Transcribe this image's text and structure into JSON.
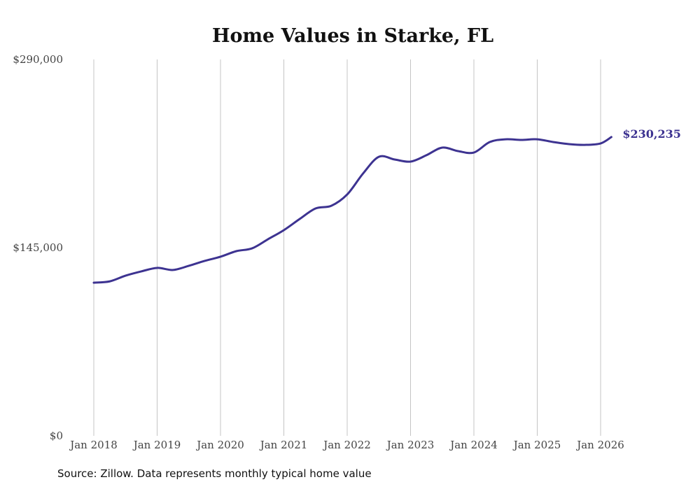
{
  "chart_data": {
    "type": "line",
    "title": "Home Values in Starke, FL",
    "xlabel": "",
    "ylabel": "",
    "ylim": [
      0,
      290000
    ],
    "y_ticks": [
      0,
      145000,
      290000
    ],
    "y_tick_labels": [
      "$0",
      "$145,000",
      "$290,000"
    ],
    "x_range": [
      2018.0,
      2026.0
    ],
    "x_tick_labels": [
      "Jan 2018",
      "Jan 2019",
      "Jan 2020",
      "Jan 2021",
      "Jan 2022",
      "Jan 2023",
      "Jan 2024",
      "Jan 2025",
      "Jan 2026"
    ],
    "grid": "vertical",
    "series": [
      {
        "name": "Typical home value",
        "color": "#3d3391",
        "x": [
          2018.0,
          2018.25,
          2018.5,
          2018.75,
          2019.0,
          2019.25,
          2019.5,
          2019.75,
          2020.0,
          2020.25,
          2020.5,
          2020.75,
          2021.0,
          2021.25,
          2021.5,
          2021.75,
          2022.0,
          2022.25,
          2022.5,
          2022.75,
          2023.0,
          2023.25,
          2023.5,
          2023.75,
          2024.0,
          2024.25,
          2024.5,
          2024.75,
          2025.0,
          2025.25,
          2025.5,
          2025.75,
          2026.0,
          2026.17
        ],
        "values": [
          118000,
          119000,
          123400,
          126700,
          129400,
          127800,
          131000,
          134800,
          138000,
          142300,
          144500,
          151500,
          158500,
          167100,
          175200,
          177300,
          186000,
          202100,
          215000,
          212900,
          211300,
          216200,
          222100,
          219400,
          218300,
          226400,
          228500,
          228000,
          228500,
          226400,
          224800,
          224200,
          225300,
          230235
        ]
      }
    ],
    "end_label": "$230,235"
  },
  "source": "Source: Zillow. Data represents monthly typical home value"
}
